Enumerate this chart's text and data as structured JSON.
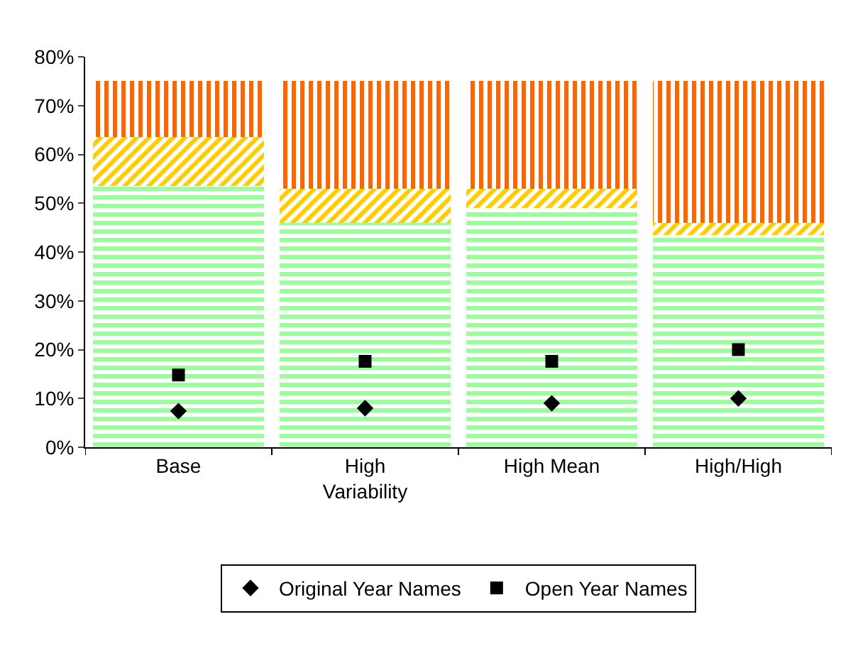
{
  "chart_data": {
    "type": "bar",
    "stacked": true,
    "categories": [
      "Base",
      "High Variability",
      "High Mean",
      "High/High"
    ],
    "series": [
      {
        "color": "#99ff99",
        "values": [
          53.5,
          46,
          49,
          43.5
        ]
      },
      {
        "color": "#ffcc00",
        "values": [
          10,
          7,
          4,
          2.5
        ]
      },
      {
        "color": "#ff6600",
        "values": [
          11.5,
          22,
          22,
          29
        ]
      },
      {
        "type": "scatter",
        "name": "Open Year Names",
        "color": "#000000",
        "marker": "square",
        "values": [
          14.8,
          17.6,
          17.6,
          20
        ]
      },
      {
        "type": "scatter",
        "name": "Original Year Names",
        "color": "#000000",
        "marker": "diamond",
        "values": [
          7.4,
          8,
          9,
          10
        ]
      }
    ],
    "ylim": [
      0,
      80
    ],
    "yticks": [
      {
        "value": 0,
        "label": "0%"
      },
      {
        "value": 10,
        "label": "10%"
      },
      {
        "value": 20,
        "label": "20%"
      },
      {
        "value": 30,
        "label": "30%"
      },
      {
        "value": 40,
        "label": "40%"
      },
      {
        "value": 50,
        "label": "50%"
      },
      {
        "value": 60,
        "label": "60%"
      },
      {
        "value": 70,
        "label": "70%"
      },
      {
        "value": 80,
        "label": "80%"
      }
    ],
    "grid": false,
    "legend": "bottom"
  }
}
